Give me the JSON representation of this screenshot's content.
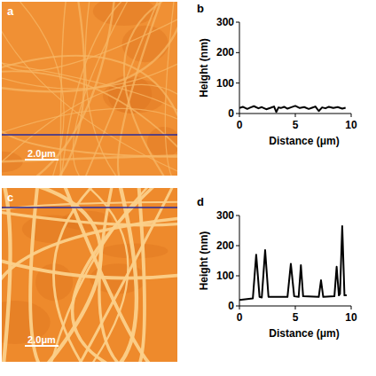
{
  "chart_data": [
    {
      "type": "line",
      "title": "b",
      "x_label": "Distance (μm)",
      "y_label": "Height (nm)",
      "x": [
        0,
        0.3,
        0.7,
        1,
        1.3,
        1.7,
        2,
        2.4,
        2.8,
        3.1,
        3.3,
        3.5,
        3.7,
        4,
        4.3,
        4.6,
        5,
        5.4,
        5.8,
        6.2,
        6.5,
        6.8,
        7.1,
        7.4,
        7.7,
        8,
        8.4,
        8.8,
        9.2,
        9.5
      ],
      "values": [
        18,
        22,
        15,
        20,
        24,
        17,
        21,
        14,
        19,
        23,
        5,
        20,
        18,
        22,
        16,
        20,
        25,
        18,
        21,
        15,
        19,
        23,
        8,
        20,
        17,
        22,
        18,
        21,
        16,
        19
      ],
      "color": "#000000",
      "xlim": [
        0,
        10
      ],
      "xticks": [
        0,
        5,
        10
      ],
      "ylim": [
        0,
        300
      ],
      "yticks": [
        0,
        100,
        200,
        300
      ]
    },
    {
      "type": "line",
      "title": "d",
      "x_label": "Distance (μm)",
      "y_label": "Height (nm)",
      "x": [
        0,
        1.2,
        1.5,
        1.8,
        2.0,
        2.3,
        2.6,
        4.3,
        4.6,
        4.9,
        5.3,
        5.5,
        5.7,
        7.1,
        7.3,
        7.5,
        8.5,
        8.7,
        8.9,
        9.0,
        9.2,
        9.4,
        9.6
      ],
      "values": [
        20,
        25,
        170,
        30,
        28,
        185,
        30,
        30,
        140,
        32,
        30,
        135,
        32,
        30,
        85,
        30,
        32,
        130,
        35,
        40,
        265,
        35,
        35
      ],
      "color": "#000000",
      "xlim": [
        0,
        10
      ],
      "xticks": [
        0,
        5,
        10
      ],
      "ylim": [
        0,
        300
      ],
      "yticks": [
        0,
        100,
        200,
        300
      ]
    }
  ],
  "images": [
    {
      "label": "a",
      "scale_bar": "2.0μm"
    },
    {
      "label": "c",
      "scale_bar": "2.0μm"
    }
  ]
}
